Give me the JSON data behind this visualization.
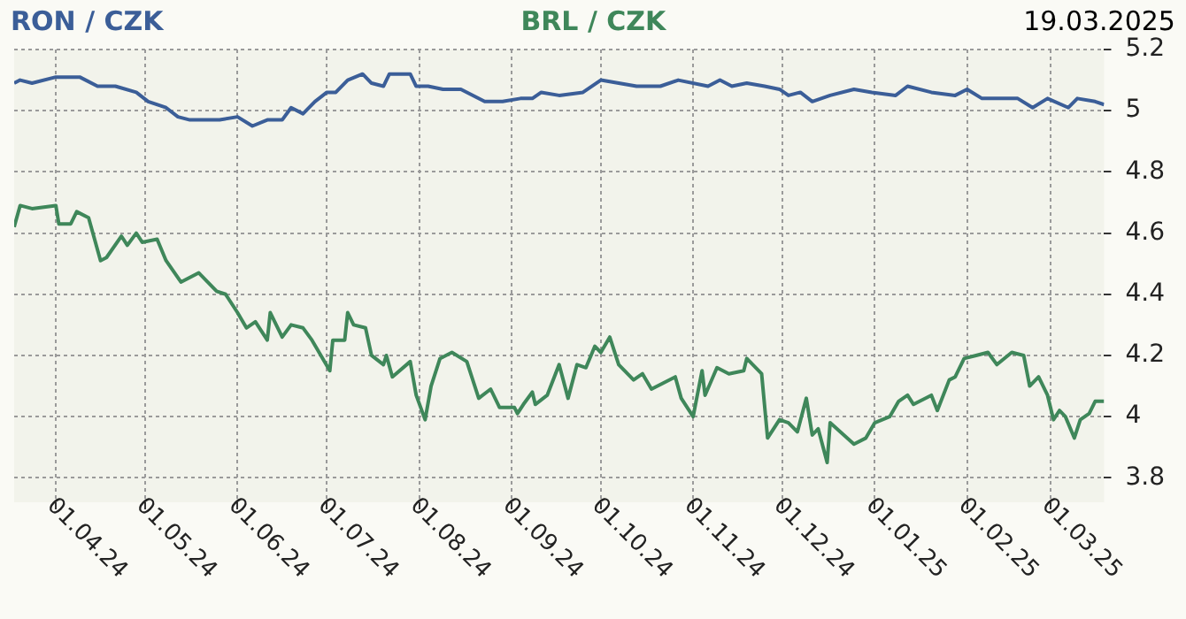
{
  "chart_data": {
    "type": "line",
    "title": "19.03.2025",
    "legend": "top",
    "grid": true,
    "xlim": [
      "2024-03-18",
      "2025-03-19"
    ],
    "ylim": [
      3.72,
      5.2
    ],
    "yticks": [
      3.8,
      4,
      4.2,
      4.4,
      4.6,
      4.8,
      5,
      5.2
    ],
    "xticks": [
      {
        "value": "2024-04-01",
        "label": "01.04.24"
      },
      {
        "value": "2024-05-01",
        "label": "01.05.24"
      },
      {
        "value": "2024-06-01",
        "label": "01.06.24"
      },
      {
        "value": "2024-07-01",
        "label": "01.07.24"
      },
      {
        "value": "2024-08-01",
        "label": "01.08.24"
      },
      {
        "value": "2024-09-01",
        "label": "01.09.24"
      },
      {
        "value": "2024-10-01",
        "label": "01.10.24"
      },
      {
        "value": "2024-11-01",
        "label": "01.11.24"
      },
      {
        "value": "2024-12-01",
        "label": "01.12.24"
      },
      {
        "value": "2025-01-01",
        "label": "01.01.25"
      },
      {
        "value": "2025-02-01",
        "label": "01.02.25"
      },
      {
        "value": "2025-03-01",
        "label": "01.03.25"
      }
    ],
    "series": [
      {
        "name": "RON / CZK",
        "color": "#3b5e98",
        "x": [
          "2024-03-18",
          "2024-03-20",
          "2024-03-24",
          "2024-04-01",
          "2024-04-09",
          "2024-04-15",
          "2024-04-21",
          "2024-04-28",
          "2024-05-02",
          "2024-05-08",
          "2024-05-12",
          "2024-05-16",
          "2024-05-26",
          "2024-06-01",
          "2024-06-06",
          "2024-06-11",
          "2024-06-16",
          "2024-06-19",
          "2024-06-23",
          "2024-06-27",
          "2024-07-01",
          "2024-07-04",
          "2024-07-08",
          "2024-07-13",
          "2024-07-16",
          "2024-07-20",
          "2024-07-22",
          "2024-07-29",
          "2024-07-31",
          "2024-08-04",
          "2024-08-09",
          "2024-08-15",
          "2024-08-23",
          "2024-08-29",
          "2024-09-04",
          "2024-09-08",
          "2024-09-11",
          "2024-09-17",
          "2024-09-25",
          "2024-10-01",
          "2024-10-07",
          "2024-10-13",
          "2024-10-21",
          "2024-10-27",
          "2024-11-06",
          "2024-11-10",
          "2024-11-14",
          "2024-11-19",
          "2024-11-25",
          "2024-11-30",
          "2024-12-03",
          "2024-12-07",
          "2024-12-11",
          "2024-12-17",
          "2024-12-25",
          "2024-12-31",
          "2025-01-08",
          "2025-01-12",
          "2025-01-20",
          "2025-01-28",
          "2025-02-01",
          "2025-02-06",
          "2025-02-12",
          "2025-02-18",
          "2025-02-23",
          "2025-02-28",
          "2025-03-07",
          "2025-03-10",
          "2025-03-16",
          "2025-03-19"
        ],
        "values": [
          5.09,
          5.1,
          5.09,
          5.11,
          5.11,
          5.08,
          5.08,
          5.06,
          5.03,
          5.01,
          4.98,
          4.97,
          4.97,
          4.98,
          4.95,
          4.97,
          4.97,
          5.01,
          4.99,
          5.03,
          5.06,
          5.06,
          5.1,
          5.12,
          5.09,
          5.08,
          5.12,
          5.12,
          5.08,
          5.08,
          5.07,
          5.07,
          5.03,
          5.03,
          5.04,
          5.04,
          5.06,
          5.05,
          5.06,
          5.1,
          5.09,
          5.08,
          5.08,
          5.1,
          5.08,
          5.1,
          5.08,
          5.09,
          5.08,
          5.07,
          5.05,
          5.06,
          5.03,
          5.05,
          5.07,
          5.06,
          5.05,
          5.08,
          5.06,
          5.05,
          5.07,
          5.04,
          5.04,
          5.04,
          5.01,
          5.04,
          5.01,
          5.04,
          5.03,
          5.02
        ]
      },
      {
        "name": "BRL / CZK",
        "color": "#3f875a",
        "x": [
          "2024-03-18",
          "2024-03-20",
          "2024-03-24",
          "2024-04-01",
          "2024-04-02",
          "2024-04-06",
          "2024-04-08",
          "2024-04-12",
          "2024-04-16",
          "2024-04-18",
          "2024-04-23",
          "2024-04-25",
          "2024-04-28",
          "2024-04-30",
          "2024-05-05",
          "2024-05-08",
          "2024-05-13",
          "2024-05-19",
          "2024-05-25",
          "2024-05-28",
          "2024-06-01",
          "2024-06-04",
          "2024-06-07",
          "2024-06-11",
          "2024-06-12",
          "2024-06-16",
          "2024-06-19",
          "2024-06-23",
          "2024-06-26",
          "2024-07-02",
          "2024-07-03",
          "2024-07-07",
          "2024-07-08",
          "2024-07-10",
          "2024-07-14",
          "2024-07-16",
          "2024-07-20",
          "2024-07-21",
          "2024-07-23",
          "2024-07-29",
          "2024-07-31",
          "2024-08-03",
          "2024-08-05",
          "2024-08-08",
          "2024-08-12",
          "2024-08-17",
          "2024-08-21",
          "2024-08-25",
          "2024-08-28",
          "2024-09-02",
          "2024-09-03",
          "2024-09-05",
          "2024-09-08",
          "2024-09-09",
          "2024-09-13",
          "2024-09-17",
          "2024-09-20",
          "2024-09-23",
          "2024-09-26",
          "2024-09-29",
          "2024-10-01",
          "2024-10-04",
          "2024-10-07",
          "2024-10-12",
          "2024-10-15",
          "2024-10-18",
          "2024-10-26",
          "2024-10-28",
          "2024-11-01",
          "2024-11-04",
          "2024-11-05",
          "2024-11-09",
          "2024-11-13",
          "2024-11-18",
          "2024-11-19",
          "2024-11-24",
          "2024-11-26",
          "2024-11-30",
          "2024-12-03",
          "2024-12-06",
          "2024-12-09",
          "2024-12-11",
          "2024-12-13",
          "2024-12-16",
          "2024-12-17",
          "2024-12-25",
          "2024-12-29",
          "2025-01-01",
          "2025-01-06",
          "2025-01-09",
          "2025-01-12",
          "2025-01-14",
          "2025-01-20",
          "2025-01-22",
          "2025-01-26",
          "2025-01-28",
          "2025-01-31",
          "2025-02-04",
          "2025-02-08",
          "2025-02-11",
          "2025-02-16",
          "2025-02-20",
          "2025-02-22",
          "2025-02-25",
          "2025-02-28",
          "2025-03-02",
          "2025-03-04",
          "2025-03-06",
          "2025-03-09",
          "2025-03-11",
          "2025-03-14",
          "2025-03-16",
          "2025-03-19"
        ],
        "values": [
          4.62,
          4.69,
          4.68,
          4.69,
          4.63,
          4.63,
          4.67,
          4.65,
          4.51,
          4.52,
          4.59,
          4.56,
          4.6,
          4.57,
          4.58,
          4.51,
          4.44,
          4.47,
          4.41,
          4.4,
          4.34,
          4.29,
          4.31,
          4.25,
          4.34,
          4.26,
          4.3,
          4.29,
          4.25,
          4.15,
          4.25,
          4.25,
          4.34,
          4.3,
          4.29,
          4.2,
          4.17,
          4.2,
          4.13,
          4.18,
          4.07,
          3.99,
          4.1,
          4.19,
          4.21,
          4.18,
          4.06,
          4.09,
          4.03,
          4.03,
          4.01,
          4.04,
          4.08,
          4.04,
          4.07,
          4.17,
          4.06,
          4.17,
          4.16,
          4.23,
          4.21,
          4.26,
          4.17,
          4.12,
          4.14,
          4.09,
          4.13,
          4.06,
          4,
          4.15,
          4.07,
          4.16,
          4.14,
          4.15,
          4.19,
          4.14,
          3.93,
          3.99,
          3.98,
          3.95,
          4.06,
          3.94,
          3.96,
          3.85,
          3.98,
          3.91,
          3.93,
          3.98,
          4,
          4.05,
          4.07,
          4.04,
          4.07,
          4.02,
          4.12,
          4.13,
          4.19,
          4.2,
          4.21,
          4.17,
          4.21,
          4.2,
          4.1,
          4.13,
          4.07,
          3.99,
          4.02,
          4,
          3.93,
          3.99,
          4.01,
          4.05,
          4.05
        ]
      }
    ]
  }
}
